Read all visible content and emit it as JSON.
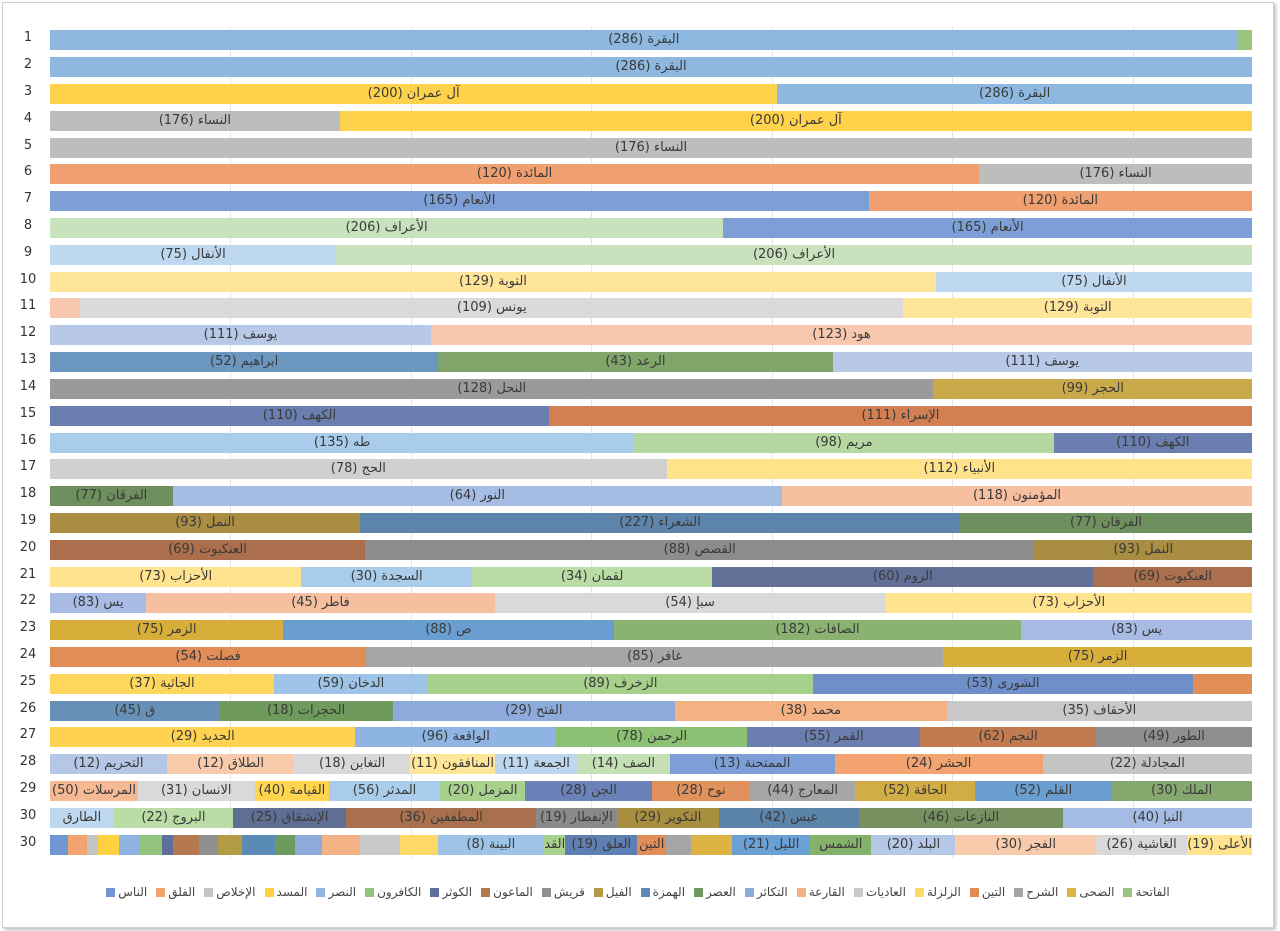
{
  "chart_data": {
    "type": "bar",
    "orientation": "horizontal-stacked",
    "value_meaning": "percent share of juz length per surah segment",
    "rows": [
      {
        "n": "1",
        "s": [
          [
            "",
            1.2,
            "#9BC57F"
          ],
          [
            "البقرة (286)",
            98.8,
            "#8FB8E0"
          ]
        ]
      },
      {
        "n": "2",
        "s": [
          [
            "البقرة (286)",
            100,
            "#8FB8E0"
          ]
        ]
      },
      {
        "n": "3",
        "s": [
          [
            "البقرة (286)",
            39.5,
            "#8FB8E0"
          ],
          [
            "آل عمران (200)",
            60.5,
            "#FFD24C"
          ]
        ]
      },
      {
        "n": "4",
        "s": [
          [
            "آل عمران (200)",
            75.9,
            "#FFD24C"
          ],
          [
            "النساء (176)",
            24.1,
            "#BDBDBD"
          ]
        ]
      },
      {
        "n": "5",
        "s": [
          [
            "النساء (176)",
            100,
            "#BDBDBD"
          ]
        ]
      },
      {
        "n": "6",
        "s": [
          [
            "النساء (176)",
            22.7,
            "#BDBDBD"
          ],
          [
            "المائدة (120)",
            77.3,
            "#F0A070"
          ]
        ]
      },
      {
        "n": "7",
        "s": [
          [
            "المائدة (120)",
            31.9,
            "#F0A070"
          ],
          [
            "الأنعام (165)",
            68.1,
            "#7D9FD8"
          ]
        ]
      },
      {
        "n": "8",
        "s": [
          [
            "الأنعام (165)",
            44,
            "#7D9FD8"
          ],
          [
            "الأعراف (206)",
            56,
            "#C9E2BE"
          ]
        ]
      },
      {
        "n": "9",
        "s": [
          [
            "الأعراف (206)",
            76.2,
            "#C9E2BE"
          ],
          [
            "الأنفال (75)",
            23.8,
            "#BED8EF"
          ]
        ]
      },
      {
        "n": "10",
        "s": [
          [
            "الأنفال (75)",
            26.3,
            "#BED8EF"
          ],
          [
            "التوبة (129)",
            73.7,
            "#FFE59A"
          ]
        ]
      },
      {
        "n": "11",
        "s": [
          [
            "التوبة (129)",
            29,
            "#FFE59A"
          ],
          [
            "يونس (109)",
            68.5,
            "#DADADA"
          ],
          [
            "",
            2.5,
            "#F8C8AE"
          ]
        ]
      },
      {
        "n": "12",
        "s": [
          [
            "هود (123)",
            68.3,
            "#F8C8AE"
          ],
          [
            "يوسف (111)",
            31.7,
            "#B8C9E8"
          ]
        ]
      },
      {
        "n": "13",
        "s": [
          [
            "يوسف (111)",
            34.9,
            "#B8C9E8"
          ],
          [
            "الرعد (43)",
            32.8,
            "#7FA56A"
          ],
          [
            "ابراهيم (52)",
            32.3,
            "#6A96C0"
          ]
        ]
      },
      {
        "n": "14",
        "s": [
          [
            "الحجر (99)",
            26.5,
            "#C9A94A"
          ],
          [
            "النحل (128)",
            73.5,
            "#9A9A9A"
          ]
        ]
      },
      {
        "n": "15",
        "s": [
          [
            "الإسراء (111)",
            58.5,
            "#D17F53"
          ],
          [
            "الكهف (110)",
            41.5,
            "#6A7FAF"
          ]
        ]
      },
      {
        "n": "16",
        "s": [
          [
            "الكهف (110)",
            16.5,
            "#6A7FAF"
          ],
          [
            "مريم (98)",
            34.9,
            "#B5D8A3"
          ],
          [
            "طه (135)",
            48.6,
            "#A9CCEA"
          ]
        ]
      },
      {
        "n": "17",
        "s": [
          [
            "الأنبياء (112)",
            48.7,
            "#FFE28A"
          ],
          [
            "الحج (78)",
            51.3,
            "#D0D0D0"
          ]
        ]
      },
      {
        "n": "18",
        "s": [
          [
            "المؤمنون (118)",
            39.1,
            "#F5BFA0"
          ],
          [
            "النور (64)",
            50.7,
            "#A5BDE3"
          ],
          [
            "الفرقان (77)",
            10.2,
            "#6E8F5E"
          ]
        ]
      },
      {
        "n": "19",
        "s": [
          [
            "الفرقان (77)",
            24.3,
            "#6E8F5E"
          ],
          [
            "الشعراء (227)",
            49.9,
            "#5D84AB"
          ],
          [
            "النمل (93)",
            25.8,
            "#A98D42"
          ]
        ]
      },
      {
        "n": "20",
        "s": [
          [
            "النمل (93)",
            18.1,
            "#A98D42"
          ],
          [
            "القصص (88)",
            55.7,
            "#8C8C8C"
          ],
          [
            "العنكبوت (69)",
            26.2,
            "#AB6F4E"
          ]
        ]
      },
      {
        "n": "21",
        "s": [
          [
            "العنكبوت (69)",
            13.2,
            "#AB6F4E"
          ],
          [
            "الروم (60)",
            31.7,
            "#627098"
          ],
          [
            "لقمان (34)",
            20,
            "#B9DDA5"
          ],
          [
            "السجدة (30)",
            14.2,
            "#A9CCEA"
          ],
          [
            "الأحزاب (73)",
            20.9,
            "#FFE38E"
          ]
        ]
      },
      {
        "n": "22",
        "s": [
          [
            "الأحزاب (73)",
            30.5,
            "#FFE38E"
          ],
          [
            "سبإ (54)",
            32.5,
            "#D9D9D9"
          ],
          [
            "فاطر (45)",
            29,
            "#F5BFA0"
          ],
          [
            "يس (83)",
            8,
            "#A8BBE4"
          ]
        ]
      },
      {
        "n": "23",
        "s": [
          [
            "يس (83)",
            19.2,
            "#A8BBE4"
          ],
          [
            "الصافات (182)",
            33.9,
            "#8AB371"
          ],
          [
            "ص (88)",
            27.5,
            "#6A9ED1"
          ],
          [
            "الزمر (75)",
            19.4,
            "#D8AE3A"
          ]
        ]
      },
      {
        "n": "24",
        "s": [
          [
            "الزمر (75)",
            25.7,
            "#D8AE3A"
          ],
          [
            "غافر (85)",
            48,
            "#A6A6A6"
          ],
          [
            "فصلت (54)",
            26.3,
            "#E08D58"
          ]
        ]
      },
      {
        "n": "25",
        "s": [
          [
            "",
            4.9,
            "#E08D58"
          ],
          [
            "الشورى (53)",
            31.6,
            "#6E8FC8"
          ],
          [
            "الزخرف (89)",
            32,
            "#A6D08B"
          ],
          [
            "الدخان (59)",
            12.8,
            "#9DC3E6"
          ],
          [
            "الجاثية (37)",
            18.6,
            "#FFD65C"
          ]
        ]
      },
      {
        "n": "26",
        "s": [
          [
            "الأحقاف (35)",
            25.4,
            "#C8C8C8"
          ],
          [
            "محمد (38)",
            22.6,
            "#F4B183"
          ],
          [
            "الفتح (29)",
            23.5,
            "#8EA9DB"
          ],
          [
            "الحجرات (18)",
            14.4,
            "#6E9A5B"
          ],
          [
            "ق (45)",
            14.1,
            "#6690B8"
          ]
        ]
      },
      {
        "n": "27",
        "s": [
          [
            "الطور (49)",
            13,
            "#8F8F8F"
          ],
          [
            "النجم (62)",
            14.6,
            "#C27A4F"
          ],
          [
            "القمر (55)",
            14.4,
            "#6A7FAF"
          ],
          [
            "الرحمن (78)",
            15.9,
            "#8CC072"
          ],
          [
            "الواقعة (96)",
            16.7,
            "#8DB4E2"
          ],
          [
            "الحديد (29)",
            25.4,
            "#FFD34F"
          ]
        ]
      },
      {
        "n": "28",
        "s": [
          [
            "المجادلة (22)",
            17.4,
            "#C4C4C4"
          ],
          [
            "الحشر (24)",
            17.3,
            "#F2A36F"
          ],
          [
            "الممتحنة (13)",
            13.7,
            "#7D9FD8"
          ],
          [
            "الصف (14)",
            7.7,
            "#C5E0B4"
          ],
          [
            "الجمعة (11)",
            6.8,
            "#BDD7EE"
          ],
          [
            "المنافقون (11)",
            7.1,
            "#FFE699"
          ],
          [
            "التغابن (18)",
            9.6,
            "#D9D9D9"
          ],
          [
            "الطلاق (12)",
            10.6,
            "#F8CBAD"
          ],
          [
            "التحريم (12)",
            9.7,
            "#B4C7E7"
          ]
        ]
      },
      {
        "n": "29",
        "s": [
          [
            "الملك (30)",
            11.7,
            "#84A86E"
          ],
          [
            "القلم (52)",
            11.3,
            "#6A9ED1"
          ],
          [
            "الحاقة (52)",
            10,
            "#D2AD45"
          ],
          [
            "المعارج (44)",
            8.7,
            "#A6A6A6"
          ],
          [
            "نوح (28)",
            8.2,
            "#E0915C"
          ],
          [
            "الجن (28)",
            10.5,
            "#6A82B8"
          ],
          [
            "المزمل (20)",
            7.1,
            "#A9D18E"
          ],
          [
            "المدثر (56)",
            9.2,
            "#A9CCEA"
          ],
          [
            "القيامة (40)",
            6.2,
            "#FFD54F"
          ],
          [
            "الانسان (31)",
            9.7,
            "#D9D9D9"
          ],
          [
            "المرسلات (50)",
            7.3,
            "#F5B994"
          ]
        ]
      },
      {
        "n": "30",
        "s": [
          [
            "النبإ (40)",
            15.7,
            "#A4BBE3"
          ],
          [
            "النازعات (46)",
            17,
            "#76905F"
          ],
          [
            "عبس (42)",
            11.6,
            "#5C83A8"
          ],
          [
            "التكوير (29)",
            8.5,
            "#A88E3F"
          ],
          [
            "الإنفطار (19)",
            6.7,
            "#8A8A8A"
          ],
          [
            "المطففين (36)",
            15.8,
            "#A8704E"
          ],
          [
            "الإنشقاق (25)",
            9.4,
            "#5E6F93"
          ],
          [
            "البروج (22)",
            9.9,
            "#B9DDA5"
          ],
          [
            "الطارق",
            5.3,
            "#BDD7EE"
          ]
        ]
      },
      {
        "n": "30",
        "s": [
          [
            "الأعلى (19)",
            5.4,
            "#FFE38E"
          ],
          [
            "الغاشية (26)",
            7.6,
            "#D9D9D9"
          ],
          [
            "الفجر (30)",
            11.7,
            "#F8CBAD"
          ],
          [
            "البلد (20)",
            7,
            "#B4C7E7"
          ],
          [
            "الشمس",
            5.1,
            "#84B26A"
          ],
          [
            "الليل (21)",
            6.5,
            "#6AA0D4"
          ],
          [
            "",
            3.4,
            "#DDB444"
          ],
          [
            "",
            2.1,
            "#A5A5A5"
          ],
          [
            "التين",
            2.4,
            "#E08D58"
          ],
          [
            "العلق (19)",
            6,
            "#5E7FB4"
          ],
          [
            "القدر",
            1.8,
            "#A9D18E"
          ],
          [
            "البينة (8)",
            8.8,
            "#9DC3E6"
          ],
          [
            "",
            3.2,
            "#FFD966"
          ],
          [
            "",
            3.3,
            "#C9C9C9"
          ],
          [
            "",
            3.2,
            "#F4B183"
          ],
          [
            "",
            2.2,
            "#8EA9DB"
          ],
          [
            "",
            1.7,
            "#6F9A5E"
          ],
          [
            "",
            2.7,
            "#5A8BB5"
          ],
          [
            "",
            2,
            "#B39A45"
          ],
          [
            "",
            1.6,
            "#8F8F8F"
          ],
          [
            "",
            2.2,
            "#B57950"
          ],
          [
            "",
            0.9,
            "#5E6F9B"
          ],
          [
            "",
            1.9,
            "#92C47D"
          ],
          [
            "",
            1.7,
            "#8DB4E2"
          ],
          [
            "",
            1.7,
            "#FFD03F"
          ],
          [
            "",
            0.9,
            "#C4C4C4"
          ],
          [
            "",
            1.6,
            "#F2A36F"
          ],
          [
            "",
            1.5,
            "#7096D4"
          ]
        ]
      }
    ],
    "legend": [
      [
        "الفاتحة",
        "#9BC57F"
      ],
      [
        "الضحى",
        "#DDB444"
      ],
      [
        "الشرح",
        "#A5A5A5"
      ],
      [
        "التين",
        "#E08D58"
      ],
      [
        "الزلزلة",
        "#FFD966"
      ],
      [
        "العاديات",
        "#C9C9C9"
      ],
      [
        "القارعة",
        "#F4B183"
      ],
      [
        "التكاثر",
        "#8EA9DB"
      ],
      [
        "العصر",
        "#6F9A5E"
      ],
      [
        "الهمزة",
        "#5A8BB5"
      ],
      [
        "الفيل",
        "#B39A45"
      ],
      [
        "قريش",
        "#8F8F8F"
      ],
      [
        "الماعون",
        "#B57950"
      ],
      [
        "الكوثر",
        "#5E6F9B"
      ],
      [
        "الكافرون",
        "#92C47D"
      ],
      [
        "النصر",
        "#8DB4E2"
      ],
      [
        "المسد",
        "#FFD03F"
      ],
      [
        "الإخلاص",
        "#C4C4C4"
      ],
      [
        "الفلق",
        "#F2A36F"
      ],
      [
        "الناس",
        "#7096D4"
      ]
    ],
    "legend_position": "bottom",
    "grid": true
  }
}
